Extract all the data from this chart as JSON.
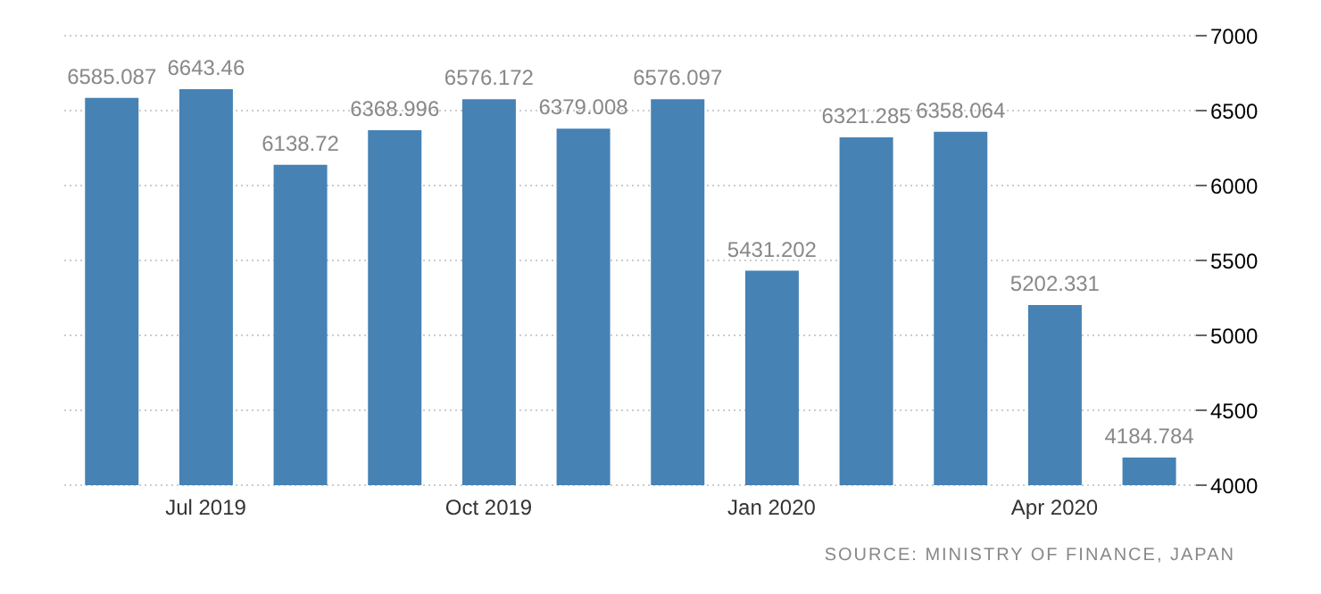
{
  "chart_data": {
    "type": "bar",
    "categories": [
      null,
      "Jul 2019",
      null,
      null,
      "Oct 2019",
      null,
      null,
      "Jan 2020",
      null,
      null,
      "Apr 2020",
      null
    ],
    "values": [
      6585.087,
      6643.46,
      6138.72,
      6368.996,
      6576.172,
      6379.008,
      6576.097,
      5431.202,
      6321.285,
      6358.064,
      5202.331,
      4184.784
    ],
    "value_labels": [
      "6585.087",
      "6643.46",
      "6138.72",
      "6368.996",
      "6576.172",
      "6379.008",
      "6576.097",
      "5431.202",
      "6321.285",
      "6358.064",
      "5202.331",
      "4184.784"
    ],
    "color": "#4682b4",
    "ylim": [
      4000,
      7000
    ],
    "yticks": [
      4000,
      4500,
      5000,
      5500,
      6000,
      6500,
      7000
    ],
    "grid": "y",
    "annotations": [
      "SOURCE: MINISTRY OF FINANCE, JAPAN"
    ]
  }
}
